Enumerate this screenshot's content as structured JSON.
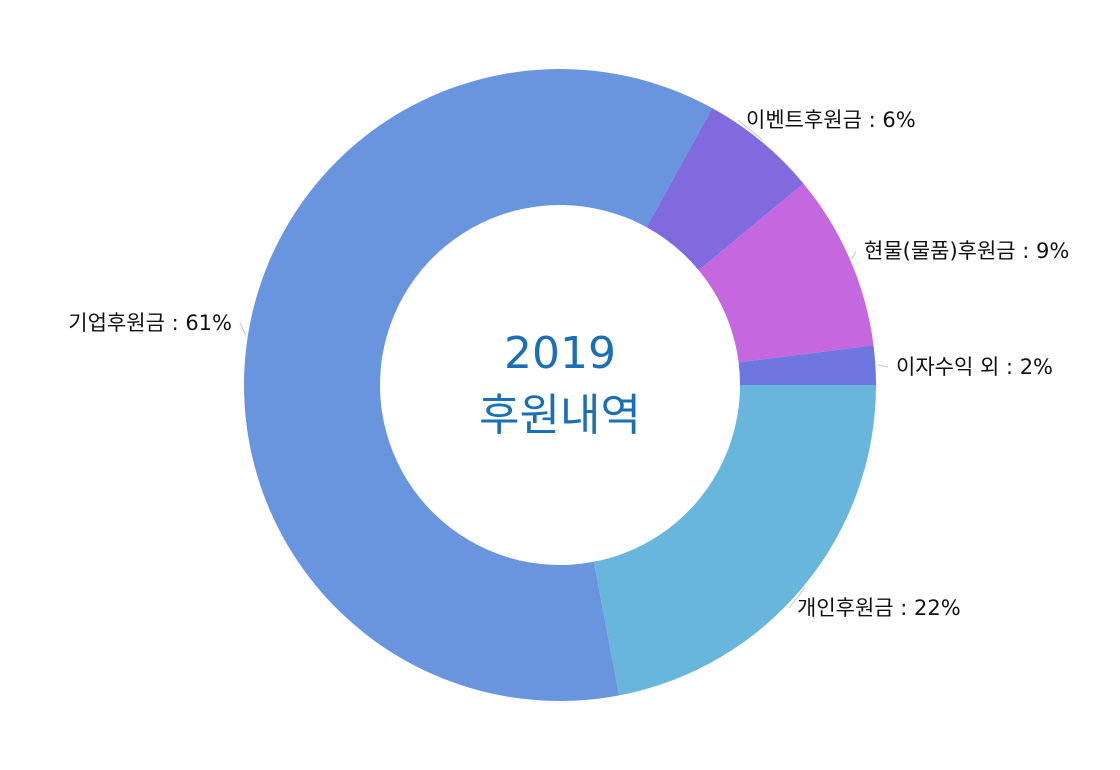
{
  "chart_data": {
    "type": "pie",
    "donut": true,
    "center_title": "2019",
    "center_subtitle": "후원내역",
    "label_separator": " : ",
    "unit": "%",
    "slices": [
      {
        "label": "개인후원금",
        "value": 22,
        "color": "#69b6dd"
      },
      {
        "label": "기업후원금",
        "value": 61,
        "color": "#6995de"
      },
      {
        "label": "이벤트후원금",
        "value": 6,
        "color": "#806add"
      },
      {
        "label": "현물(물품)후원금",
        "value": 9,
        "color": "#c567de"
      },
      {
        "label": "이자수익 외",
        "value": 2,
        "color": "#6e76e0"
      }
    ]
  }
}
